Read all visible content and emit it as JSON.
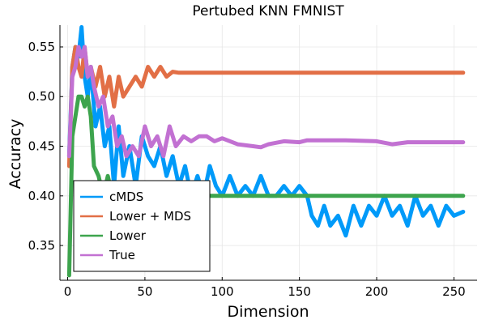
{
  "chart_data": {
    "type": "line",
    "title": "Pertubed KNN FMNIST",
    "xlabel": "Dimension",
    "ylabel": "Accuracy",
    "xlim": [
      -5,
      265
    ],
    "ylim": [
      0.315,
      0.572
    ],
    "grid": true,
    "legend_position": "bottom-left",
    "x_ticks": [
      0,
      50,
      100,
      150,
      200,
      250
    ],
    "x_tick_labels": [
      "0",
      "50",
      "100",
      "150",
      "200",
      "250"
    ],
    "y_ticks": [
      0.35,
      0.4,
      0.45,
      0.5,
      0.55
    ],
    "y_tick_labels": [
      "0.35",
      "0.40",
      "0.45",
      "0.50",
      "0.55"
    ],
    "series": [
      {
        "name": "cMDS",
        "color": "#009af9",
        "x": [
          1,
          3,
          5,
          7,
          9,
          11,
          13,
          15,
          18,
          21,
          24,
          27,
          30,
          33,
          36,
          40,
          44,
          48,
          52,
          56,
          60,
          64,
          68,
          72,
          76,
          80,
          84,
          88,
          92,
          96,
          100,
          105,
          110,
          115,
          120,
          125,
          130,
          135,
          140,
          145,
          150,
          155,
          158,
          162,
          166,
          170,
          175,
          180,
          185,
          190,
          195,
          200,
          205,
          210,
          215,
          220,
          225,
          230,
          235,
          240,
          245,
          250,
          256
        ],
        "y": [
          0.44,
          0.53,
          0.55,
          0.54,
          0.57,
          0.52,
          0.5,
          0.53,
          0.47,
          0.49,
          0.45,
          0.47,
          0.41,
          0.47,
          0.42,
          0.45,
          0.41,
          0.46,
          0.44,
          0.43,
          0.45,
          0.42,
          0.44,
          0.41,
          0.43,
          0.4,
          0.42,
          0.4,
          0.43,
          0.41,
          0.4,
          0.42,
          0.4,
          0.41,
          0.4,
          0.42,
          0.4,
          0.4,
          0.41,
          0.4,
          0.41,
          0.4,
          0.38,
          0.37,
          0.39,
          0.37,
          0.38,
          0.36,
          0.39,
          0.37,
          0.39,
          0.38,
          0.4,
          0.38,
          0.39,
          0.37,
          0.4,
          0.38,
          0.39,
          0.37,
          0.39,
          0.38,
          0.384
        ]
      },
      {
        "name": "Lower + MDS",
        "color": "#e26f46",
        "x": [
          1,
          3,
          5,
          7,
          9,
          11,
          13,
          15,
          18,
          21,
          24,
          27,
          30,
          33,
          36,
          40,
          44,
          48,
          52,
          56,
          60,
          64,
          68,
          72,
          80,
          100,
          150,
          200,
          256
        ],
        "y": [
          0.43,
          0.53,
          0.55,
          0.53,
          0.52,
          0.55,
          0.52,
          0.53,
          0.51,
          0.53,
          0.5,
          0.52,
          0.49,
          0.52,
          0.5,
          0.51,
          0.52,
          0.51,
          0.53,
          0.52,
          0.53,
          0.52,
          0.525,
          0.524,
          0.524,
          0.524,
          0.524,
          0.524,
          0.524
        ]
      },
      {
        "name": "Lower",
        "color": "#3da44d",
        "x": [
          1,
          3,
          5,
          7,
          9,
          11,
          13,
          15,
          17,
          20,
          23,
          26,
          29,
          32,
          35,
          38,
          41,
          45,
          50,
          60,
          70,
          80,
          100,
          150,
          200,
          256
        ],
        "y": [
          0.32,
          0.46,
          0.48,
          0.5,
          0.5,
          0.49,
          0.5,
          0.48,
          0.43,
          0.42,
          0.4,
          0.42,
          0.4,
          0.41,
          0.4,
          0.41,
          0.4,
          0.4,
          0.4,
          0.4,
          0.4,
          0.4,
          0.4,
          0.4,
          0.4,
          0.4
        ]
      },
      {
        "name": "True",
        "color": "#c271d2",
        "x": [
          1,
          3,
          5,
          7,
          9,
          11,
          13,
          15,
          17,
          20,
          23,
          26,
          29,
          32,
          35,
          38,
          42,
          46,
          50,
          54,
          58,
          62,
          66,
          70,
          75,
          80,
          85,
          90,
          95,
          100,
          110,
          120,
          125,
          130,
          140,
          150,
          155,
          160,
          180,
          200,
          210,
          220,
          240,
          256
        ],
        "y": [
          0.44,
          0.52,
          0.53,
          0.55,
          0.54,
          0.55,
          0.52,
          0.53,
          0.51,
          0.49,
          0.5,
          0.47,
          0.48,
          0.45,
          0.46,
          0.44,
          0.45,
          0.44,
          0.47,
          0.45,
          0.46,
          0.44,
          0.47,
          0.45,
          0.46,
          0.455,
          0.46,
          0.46,
          0.455,
          0.458,
          0.452,
          0.45,
          0.449,
          0.452,
          0.455,
          0.454,
          0.456,
          0.456,
          0.456,
          0.455,
          0.452,
          0.454,
          0.454,
          0.454
        ]
      }
    ]
  }
}
